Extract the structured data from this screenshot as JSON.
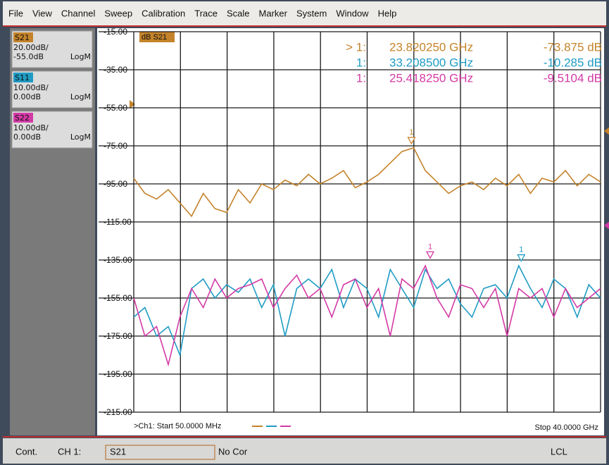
{
  "menu": [
    "File",
    "View",
    "Channel",
    "Sweep",
    "Calibration",
    "Trace",
    "Scale",
    "Marker",
    "System",
    "Window",
    "Help"
  ],
  "traces_panel": [
    {
      "scale": "20.00dB/",
      "ref": "-55.0dB",
      "format": "LogM"
    },
    {
      "scale": "10.00dB/",
      "ref": "0.00dB",
      "format": "LogM"
    },
    {
      "scale": "10.00dB/",
      "ref": "0.00dB",
      "format": "LogM"
    }
  ],
  "chart_data": {
    "type": "line",
    "active_trace_label": "dB S21",
    "x": [
      0.05,
      1,
      2,
      3,
      4,
      5,
      6,
      7,
      8,
      9,
      10,
      11,
      12,
      13,
      14,
      15,
      16,
      17,
      18,
      19,
      20,
      21,
      22,
      23,
      24,
      25,
      26,
      27,
      28,
      29,
      30,
      31,
      32,
      33,
      34,
      35,
      36,
      37,
      38,
      39,
      40
    ],
    "xlim": [
      0.05,
      40
    ],
    "ylim": [
      -215,
      -15
    ],
    "yticks": [
      {
        "value": -15,
        "label": "-15.00"
      },
      {
        "value": -35,
        "label": "-35.00"
      },
      {
        "value": -55,
        "label": "-55.00"
      },
      {
        "value": -75,
        "label": "-75.00"
      },
      {
        "value": -95,
        "label": "-95.00"
      },
      {
        "value": -115,
        "label": "-115.00"
      },
      {
        "value": -135,
        "label": "-135.00"
      },
      {
        "value": -155,
        "label": "-155.00"
      },
      {
        "value": -175,
        "label": "-175.00"
      },
      {
        "value": -195,
        "label": "-195.00"
      },
      {
        "value": -215,
        "label": "-215.00"
      }
    ],
    "grid": true,
    "series": [
      {
        "name": "S21",
        "color": "#c4832a",
        "values": [
          -92,
          -100,
          -103,
          -98,
          -105,
          -112,
          -100,
          -108,
          -110,
          -98,
          -105,
          -95,
          -98,
          -93,
          -96,
          -90,
          -95,
          -92,
          -88,
          -97,
          -94,
          -90,
          -84,
          -78,
          -76,
          -88,
          -94,
          -100,
          -96,
          -94,
          -98,
          -92,
          -96,
          -90,
          -100,
          -92,
          -94,
          -88,
          -96,
          -90,
          -94
        ],
        "marker": {
          "label": "1",
          "x": 23.82025,
          "y": -73.875
        }
      },
      {
        "name": "S11",
        "color": "#1f9cc4",
        "values": [
          -165,
          -160,
          -175,
          -170,
          -185,
          -150,
          -145,
          -155,
          -148,
          -152,
          -145,
          -160,
          -148,
          -175,
          -150,
          -145,
          -150,
          -140,
          -160,
          -145,
          -150,
          -165,
          -140,
          -150,
          -160,
          -140,
          -150,
          -145,
          -158,
          -165,
          -150,
          -148,
          -155,
          -138,
          -150,
          -160,
          -145,
          -150,
          -165,
          -148,
          -155
        ],
        "marker": {
          "label": "1",
          "x": 33.2085,
          "y": -135.57
        }
      },
      {
        "name": "S22",
        "color": "#d43aa6",
        "values": [
          -155,
          -175,
          -170,
          -190,
          -165,
          -150,
          -160,
          -145,
          -155,
          -150,
          -148,
          -145,
          -160,
          -150,
          -143,
          -155,
          -150,
          -165,
          -148,
          -145,
          -160,
          -150,
          -175,
          -145,
          -150,
          -138,
          -155,
          -165,
          -148,
          -150,
          -160,
          -150,
          -175,
          -150,
          -155,
          -150,
          -165,
          -150,
          -160,
          -155,
          -150
        ],
        "marker": {
          "label": "1",
          "x": 25.41825,
          "y": -134.02
        }
      }
    ],
    "marker_readout": [
      {
        "pointer": "> 1:",
        "frequency": "23.820250 GHz",
        "value": "-73.875 dB"
      },
      {
        "pointer": "1:",
        "frequency": "33.208500 GHz",
        "value": "-10.285 dB"
      },
      {
        "pointer": "1:",
        "frequency": "25.418250 GHz",
        "value": "-9.5104 dB"
      }
    ],
    "start_label": ">Ch1: Start 50.0000 MHz",
    "stop_label": "Stop 40.0000 GHz"
  },
  "status_bar": {
    "mode": "Cont.",
    "channel": "CH 1:",
    "trace": "S21",
    "correction": "No Cor",
    "remote": "LCL"
  }
}
